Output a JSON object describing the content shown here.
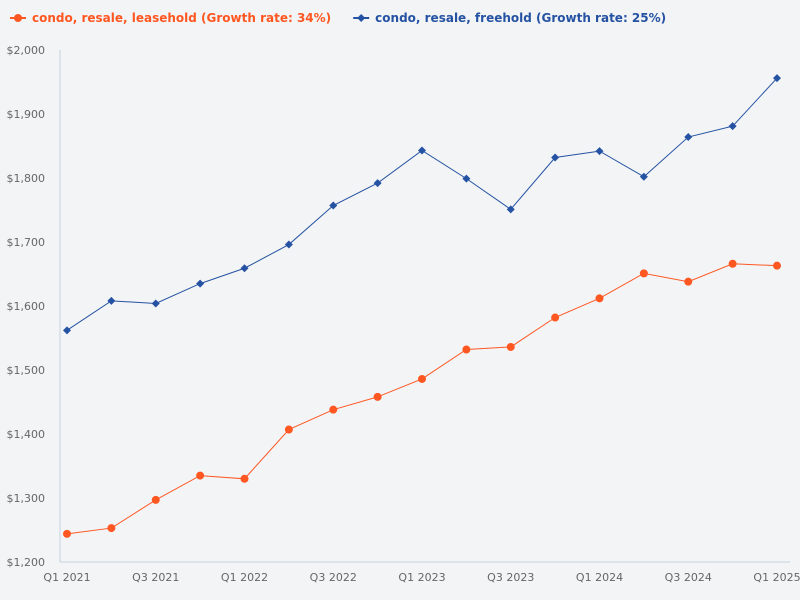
{
  "chart_data": {
    "type": "line",
    "title": "",
    "xlabel": "",
    "ylabel": "",
    "ylim": [
      1200,
      2000
    ],
    "grid": false,
    "legend_position": "top-left",
    "x": [
      "Q1 2021",
      "Q2 2021",
      "Q3 2021",
      "Q4 2021",
      "Q1 2022",
      "Q2 2022",
      "Q3 2022",
      "Q4 2022",
      "Q1 2023",
      "Q2 2023",
      "Q3 2023",
      "Q4 2023",
      "Q1 2024",
      "Q2 2024",
      "Q3 2024",
      "Q4 2024",
      "Q1 2025"
    ],
    "x_tick_labels": [
      "Q1 2021",
      "Q3 2021",
      "Q1 2022",
      "Q3 2022",
      "Q1 2023",
      "Q3 2023",
      "Q1 2024",
      "Q3 2024",
      "Q1 2025"
    ],
    "y_tick_labels": [
      "$1,200",
      "$1,300",
      "$1,400",
      "$1,500",
      "$1,600",
      "$1,700",
      "$1,800",
      "$1,900",
      "$2,000"
    ],
    "series": [
      {
        "name": "condo, resale, leasehold (Growth rate: 34%)",
        "color": "#ff5722",
        "marker": "circle",
        "values": [
          1244,
          1253,
          1297,
          1335,
          1330,
          1407,
          1438,
          1458,
          1486,
          1532,
          1536,
          1582,
          1612,
          1651,
          1638,
          1666,
          1663
        ]
      },
      {
        "name": "condo, resale, freehold (Growth rate: 25%)",
        "color": "#2552a3",
        "marker": "diamond",
        "values": [
          1562,
          1608,
          1604,
          1635,
          1659,
          1696,
          1757,
          1792,
          1843,
          1799,
          1751,
          1832,
          1842,
          1802,
          1864,
          1881,
          1956
        ]
      }
    ]
  }
}
